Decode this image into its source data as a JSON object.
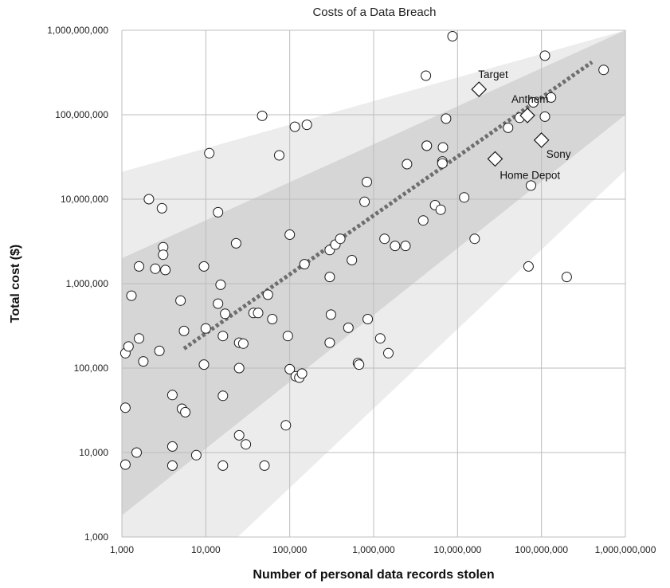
{
  "chart_data": {
    "type": "scatter",
    "title": "Costs of a Data Breach",
    "xlabel": "Number of personal data records stolen",
    "ylabel": "Total cost ($)",
    "x_scale": "log",
    "y_scale": "log",
    "xlim": [
      1000,
      1000000000
    ],
    "ylim": [
      1000,
      1000000000
    ],
    "x_ticks": [
      1000,
      10000,
      100000,
      1000000,
      10000000,
      100000000,
      1000000000
    ],
    "x_tick_labels": [
      "1,000",
      "10,000",
      "100,000",
      "1,000,000",
      "10,000,000",
      "100,000,000",
      "1,000,000,000"
    ],
    "y_ticks": [
      1000,
      10000,
      100000,
      1000000,
      10000000,
      100000000,
      1000000000
    ],
    "y_tick_labels": [
      "1,000",
      "10,000",
      "100,000",
      "1,000,000",
      "10,000,000",
      "100,000,000",
      "1,000,000,000"
    ],
    "grid": true,
    "trend_line": {
      "x": [
        5500,
        400000000
      ],
      "y": [
        170000,
        420000000
      ],
      "style": "dotted",
      "color": "#6e6e6e"
    },
    "bands": [
      {
        "label": "",
        "color": "#ececec",
        "x": [
          1000,
          24000,
          1000000000,
          1000000000,
          1000
        ],
        "y": [
          1000,
          1000,
          22000000,
          1000000000,
          21000000
        ]
      },
      {
        "label": "",
        "color": "#d6d6d6",
        "x": [
          1000,
          1000000000,
          1000000000,
          1000
        ],
        "y": [
          1800,
          100000000,
          1000000000,
          2000000
        ]
      }
    ],
    "marker_colors": {
      "fill": "#ffffff",
      "stroke": "#1a1a1a"
    },
    "highlighted": [
      {
        "name": "Target",
        "x": 18000000,
        "y": 200000000
      },
      {
        "name": "Anthem",
        "x": 68000000,
        "y": 98000000
      },
      {
        "name": "Sony",
        "x": 100000000,
        "y": 50000000
      },
      {
        "name": "Home Depot",
        "x": 28000000,
        "y": 30000000
      }
    ],
    "points": [
      [
        1100,
        150000
      ],
      [
        1100,
        34000
      ],
      [
        1100,
        7200
      ],
      [
        1200,
        180000
      ],
      [
        1300,
        720000
      ],
      [
        1500,
        10000
      ],
      [
        1600,
        225000
      ],
      [
        1600,
        1600000
      ],
      [
        1800,
        120000
      ],
      [
        2100,
        10000000
      ],
      [
        2500,
        1500000
      ],
      [
        2800,
        160000
      ],
      [
        3000,
        7800000
      ],
      [
        3100,
        2700000
      ],
      [
        3100,
        2200000
      ],
      [
        3300,
        1450000
      ],
      [
        4000,
        48000
      ],
      [
        4000,
        11800
      ],
      [
        4000,
        7000
      ],
      [
        5000,
        630000
      ],
      [
        5200,
        33000
      ],
      [
        5500,
        275000
      ],
      [
        5700,
        30000
      ],
      [
        7700,
        9300
      ],
      [
        9500,
        1600000
      ],
      [
        9500,
        110000
      ],
      [
        10000,
        295000
      ],
      [
        11000,
        35000000
      ],
      [
        14000,
        7000000
      ],
      [
        14000,
        580000
      ],
      [
        15000,
        970000
      ],
      [
        16000,
        7000
      ],
      [
        16000,
        240000
      ],
      [
        16000,
        47000
      ],
      [
        17000,
        440000
      ],
      [
        23000,
        3000000
      ],
      [
        25000,
        200000
      ],
      [
        25000,
        100000
      ],
      [
        25000,
        16000
      ],
      [
        28000,
        195000
      ],
      [
        30000,
        12500
      ],
      [
        37000,
        450000
      ],
      [
        42000,
        450000
      ],
      [
        47000,
        97000000
      ],
      [
        50000,
        7000
      ],
      [
        55000,
        740000
      ],
      [
        62000,
        380000
      ],
      [
        75000,
        33000000
      ],
      [
        90000,
        21000
      ],
      [
        95000,
        240000
      ],
      [
        100000,
        3800000
      ],
      [
        100000,
        97000
      ],
      [
        115000,
        72000000
      ],
      [
        118000,
        80000
      ],
      [
        130000,
        77000
      ],
      [
        140000,
        86000
      ],
      [
        150000,
        1700000
      ],
      [
        160000,
        76000000
      ],
      [
        300000,
        2500000
      ],
      [
        300000,
        1200000
      ],
      [
        300000,
        200000
      ],
      [
        310000,
        430000
      ],
      [
        350000,
        2900000
      ],
      [
        400000,
        3400000
      ],
      [
        500000,
        300000
      ],
      [
        550000,
        1900000
      ],
      [
        650000,
        115000
      ],
      [
        670000,
        110000
      ],
      [
        780000,
        9300000
      ],
      [
        830000,
        16000000
      ],
      [
        850000,
        380000
      ],
      [
        1200000,
        225000
      ],
      [
        1350000,
        3400000
      ],
      [
        1500000,
        150000
      ],
      [
        1800000,
        2800000
      ],
      [
        2400000,
        2800000
      ],
      [
        2500000,
        26000000
      ],
      [
        3900000,
        5600000
      ],
      [
        4200000,
        290000000
      ],
      [
        4300000,
        43000000
      ],
      [
        4300000,
        43000000
      ],
      [
        5400000,
        8500000
      ],
      [
        6300000,
        7500000
      ],
      [
        6600000,
        28000000
      ],
      [
        6600000,
        26500000
      ],
      [
        6700000,
        41000000
      ],
      [
        7300000,
        90000000
      ],
      [
        8700000,
        850000000
      ],
      [
        12000000,
        10500000
      ],
      [
        16000000,
        3400000
      ],
      [
        40000000,
        70000000
      ],
      [
        55000000,
        92000000
      ],
      [
        70000000,
        1600000
      ],
      [
        75000000,
        14500000
      ],
      [
        80000000,
        140000000
      ],
      [
        110000000,
        95000000
      ],
      [
        110000000,
        500000000
      ],
      [
        130000000,
        160000000
      ],
      [
        200000000,
        1200000
      ],
      [
        550000000,
        340000000
      ]
    ]
  }
}
